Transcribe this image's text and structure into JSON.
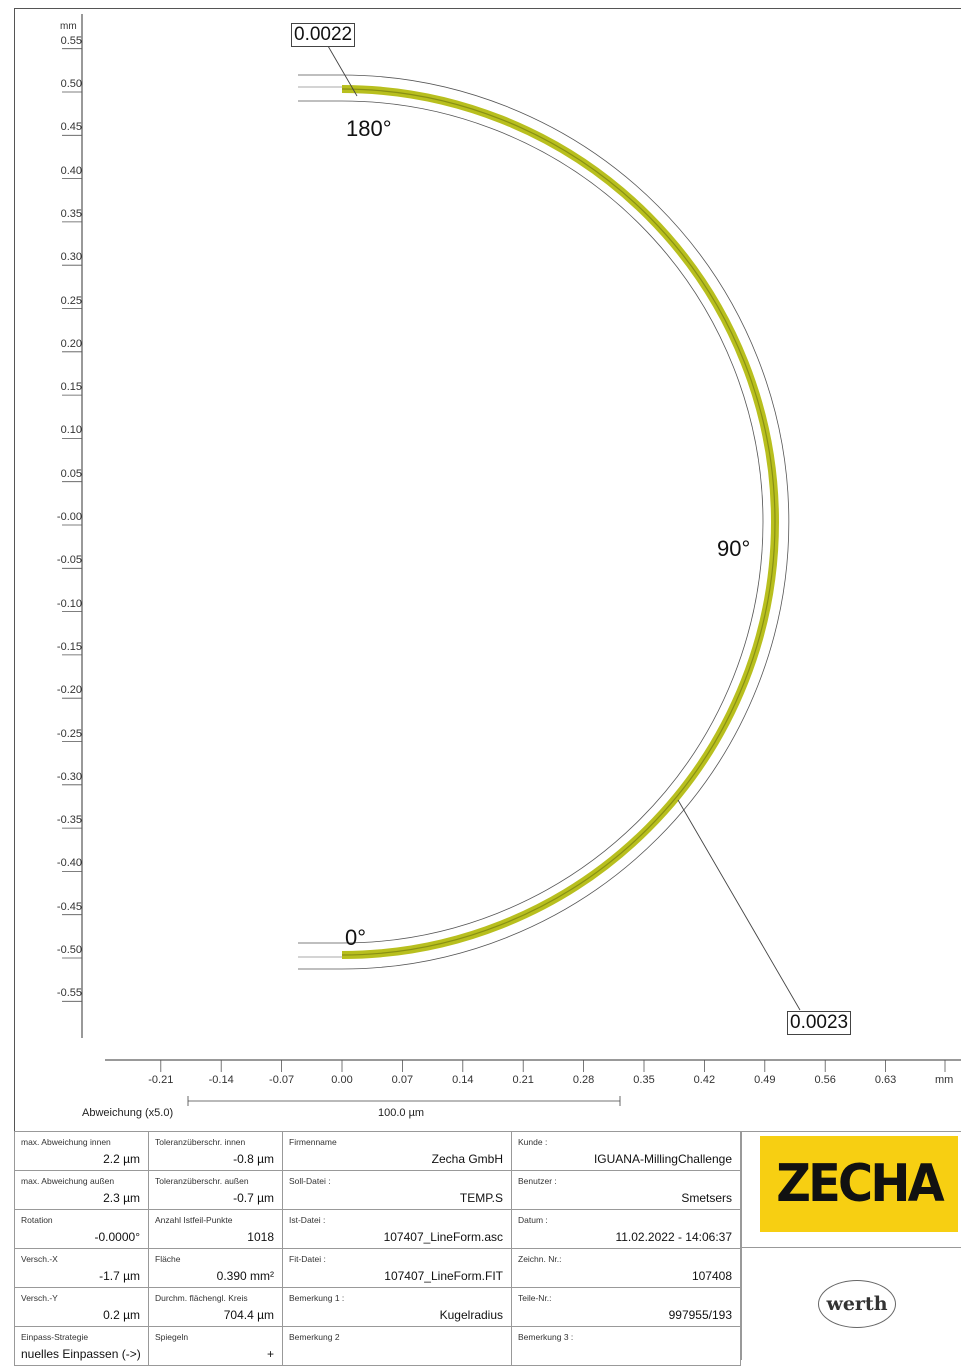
{
  "y_axis": {
    "unit": "mm",
    "ticks": [
      "0.55",
      "0.50",
      "0.45",
      "0.40",
      "0.35",
      "0.30",
      "0.25",
      "0.20",
      "0.15",
      "0.10",
      "0.05",
      "-0.00",
      "-0.05",
      "-0.10",
      "-0.15",
      "-0.20",
      "-0.25",
      "-0.30",
      "-0.35",
      "-0.40",
      "-0.45",
      "-0.50",
      "-0.55"
    ]
  },
  "x_axis": {
    "unit": "mm",
    "ticks": [
      "-0.21",
      "-0.14",
      "-0.07",
      "0.00",
      "0.07",
      "0.14",
      "0.21",
      "0.28",
      "0.35",
      "0.42",
      "0.49",
      "0.56",
      "0.63"
    ]
  },
  "scale_bar": {
    "label": "Abweichung (x5.0)",
    "value": "100.0 µm"
  },
  "callouts": {
    "top": "0.0022",
    "bottom": "0.0023"
  },
  "angles": {
    "a180": "180°",
    "a90": "90°",
    "a0": "0°"
  },
  "profile": {
    "radius_mm": 0.5,
    "tolerance_color": "#b8bf1e"
  },
  "table": {
    "col1": [
      {
        "label": "max. Abweichung innen",
        "value": "2.2 µm"
      },
      {
        "label": "max. Abweichung außen",
        "value": "2.3 µm"
      },
      {
        "label": "Rotation",
        "value": "-0.0000°"
      },
      {
        "label": "Versch.-X",
        "value": "-1.7 µm"
      },
      {
        "label": "Versch.-Y",
        "value": "0.2 µm"
      },
      {
        "label": "Einpass-Strategie",
        "value": "nuelles Einpassen (->)"
      }
    ],
    "col2": [
      {
        "label": "Toleranzüberschr. innen",
        "value": "-0.8 µm"
      },
      {
        "label": "Toleranzüberschr. außen",
        "value": "-0.7 µm"
      },
      {
        "label": "Anzahl Istfeil-Punkte",
        "value": "1018"
      },
      {
        "label": "Fläche",
        "value": "0.390 mm²"
      },
      {
        "label": "Durchm. flächengl. Kreis",
        "value": "704.4 µm"
      },
      {
        "label": "Spiegeln",
        "value": "+"
      }
    ],
    "col3": [
      {
        "label": "Firmenname",
        "value": "Zecha GmbH"
      },
      {
        "label": "Soll-Datei :",
        "value": "TEMP.S"
      },
      {
        "label": "Ist-Datei :",
        "value": "107407_LineForm.asc"
      },
      {
        "label": "Fit-Datei :",
        "value": "107407_LineForm.FIT"
      },
      {
        "label": "Bemerkung 1 :",
        "value": "Kugelradius"
      },
      {
        "label": "Bemerkung 2",
        "value": ""
      }
    ],
    "col4": [
      {
        "label": "Kunde :",
        "value": "IGUANA-MillingChallenge"
      },
      {
        "label": "Benutzer :",
        "value": "Smetsers"
      },
      {
        "label": "Datum :",
        "value": "11.02.2022 - 14:06:37"
      },
      {
        "label": "Zeichn. Nr.:",
        "value": "107408"
      },
      {
        "label": "Teile-Nr.:",
        "value": "997955/193"
      },
      {
        "label": "Bemerkung 3 :",
        "value": ""
      }
    ]
  },
  "logos": {
    "zecha": "ZECHA",
    "werth": "werth"
  }
}
